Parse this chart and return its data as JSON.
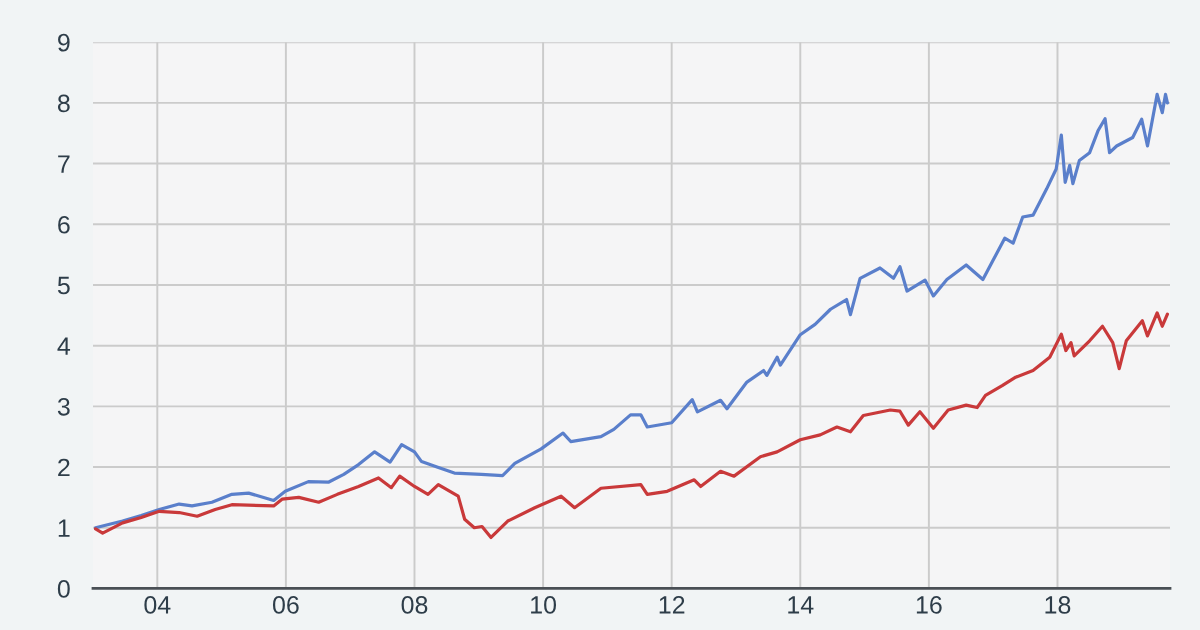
{
  "chart_data": {
    "type": "line",
    "xlim": [
      2003.0,
      2019.75
    ],
    "ylim": [
      0,
      9
    ],
    "xticks": [
      {
        "value": 2004,
        "label": "04"
      },
      {
        "value": 2006,
        "label": "06"
      },
      {
        "value": 2008,
        "label": "08"
      },
      {
        "value": 2010,
        "label": "10"
      },
      {
        "value": 2012,
        "label": "12"
      },
      {
        "value": 2014,
        "label": "14"
      },
      {
        "value": 2016,
        "label": "16"
      },
      {
        "value": 2018,
        "label": "18"
      }
    ],
    "yticks": [
      0,
      1,
      2,
      3,
      4,
      5,
      6,
      7,
      8,
      9
    ],
    "grid": true,
    "series": [
      {
        "color": "#5a7fcb",
        "x": [
          2003.04,
          2003.46,
          2003.75,
          2004.03,
          2004.34,
          2004.54,
          2004.85,
          2005.16,
          2005.42,
          2005.81,
          2005.99,
          2006.35,
          2006.66,
          2006.9,
          2007.13,
          2007.38,
          2007.62,
          2007.8,
          2008.0,
          2008.11,
          2008.35,
          2008.62,
          2009.04,
          2009.37,
          2009.56,
          2009.97,
          2010.31,
          2010.43,
          2010.9,
          2011.1,
          2011.36,
          2011.52,
          2011.62,
          2012.0,
          2012.32,
          2012.4,
          2012.76,
          2012.86,
          2013.17,
          2013.43,
          2013.48,
          2013.64,
          2013.69,
          2014.0,
          2014.23,
          2014.47,
          2014.72,
          2014.78,
          2014.93,
          2015.24,
          2015.45,
          2015.55,
          2015.66,
          2015.94,
          2016.07,
          2016.28,
          2016.58,
          2016.84,
          2016.99,
          2017.18,
          2017.31,
          2017.46,
          2017.62,
          2017.83,
          2017.98,
          2018.06,
          2018.12,
          2018.19,
          2018.24,
          2018.34,
          2018.5,
          2018.63,
          2018.74,
          2018.81,
          2018.92,
          2019.17,
          2019.31,
          2019.4,
          2019.55,
          2019.63,
          2019.68,
          2019.71
        ],
        "values": [
          1.0,
          1.11,
          1.2,
          1.3,
          1.39,
          1.36,
          1.42,
          1.55,
          1.57,
          1.45,
          1.6,
          1.76,
          1.75,
          1.88,
          2.04,
          2.25,
          2.08,
          2.37,
          2.25,
          2.09,
          2.0,
          1.9,
          1.88,
          1.86,
          2.06,
          2.3,
          2.56,
          2.42,
          2.5,
          2.62,
          2.86,
          2.86,
          2.66,
          2.73,
          3.11,
          2.91,
          3.1,
          2.96,
          3.4,
          3.59,
          3.51,
          3.81,
          3.68,
          4.18,
          4.35,
          4.6,
          4.76,
          4.51,
          5.11,
          5.28,
          5.11,
          5.3,
          4.9,
          5.08,
          4.82,
          5.09,
          5.33,
          5.09,
          5.39,
          5.77,
          5.69,
          6.12,
          6.15,
          6.58,
          6.91,
          7.47,
          6.69,
          6.97,
          6.67,
          7.05,
          7.18,
          7.54,
          7.74,
          7.18,
          7.29,
          7.43,
          7.73,
          7.29,
          8.14,
          7.84,
          8.14,
          8.0
        ]
      },
      {
        "color": "#c9393a",
        "x": [
          2003.04,
          2003.15,
          2003.46,
          2003.75,
          2004.03,
          2004.34,
          2004.62,
          2004.9,
          2005.16,
          2005.81,
          2005.94,
          2006.2,
          2006.51,
          2006.8,
          2007.13,
          2007.44,
          2007.64,
          2007.77,
          2008.0,
          2008.21,
          2008.37,
          2008.68,
          2008.78,
          2008.93,
          2009.05,
          2009.19,
          2009.45,
          2009.87,
          2010.28,
          2010.49,
          2010.9,
          2011.52,
          2011.62,
          2011.93,
          2012.35,
          2012.45,
          2012.76,
          2012.97,
          2013.38,
          2013.64,
          2014.0,
          2014.31,
          2014.57,
          2014.78,
          2014.98,
          2015.4,
          2015.55,
          2015.68,
          2015.86,
          2016.07,
          2016.3,
          2016.58,
          2016.75,
          2016.88,
          2017.14,
          2017.35,
          2017.62,
          2017.88,
          2018.06,
          2018.13,
          2018.21,
          2018.26,
          2018.5,
          2018.7,
          2018.86,
          2018.96,
          2019.07,
          2019.32,
          2019.4,
          2019.55,
          2019.63,
          2019.71
        ],
        "values": [
          0.98,
          0.91,
          1.08,
          1.17,
          1.27,
          1.25,
          1.19,
          1.3,
          1.38,
          1.36,
          1.47,
          1.5,
          1.42,
          1.55,
          1.68,
          1.82,
          1.66,
          1.85,
          1.68,
          1.55,
          1.71,
          1.52,
          1.14,
          1.0,
          1.02,
          0.84,
          1.11,
          1.33,
          1.52,
          1.33,
          1.65,
          1.71,
          1.55,
          1.6,
          1.79,
          1.68,
          1.93,
          1.85,
          2.17,
          2.25,
          2.45,
          2.53,
          2.66,
          2.58,
          2.85,
          2.94,
          2.92,
          2.69,
          2.91,
          2.64,
          2.94,
          3.02,
          2.98,
          3.18,
          3.34,
          3.48,
          3.59,
          3.81,
          4.19,
          3.92,
          4.05,
          3.83,
          4.08,
          4.32,
          4.05,
          3.62,
          4.08,
          4.41,
          4.16,
          4.54,
          4.32,
          4.52
        ]
      }
    ]
  }
}
